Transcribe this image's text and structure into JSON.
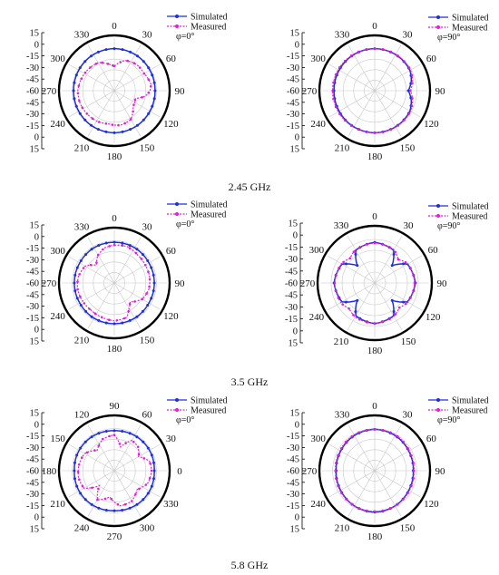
{
  "figure": {
    "sections": [
      {
        "label": "2.45 GHz"
      },
      {
        "label": "3.5 GHz"
      },
      {
        "label": "5.8 GHz"
      }
    ]
  },
  "colors": {
    "simulated": "#1f2fd6",
    "measured": "#e01fd6",
    "axis": "#000000",
    "grid": "#c8c8c8"
  },
  "chart_data": [
    {
      "type": "polar",
      "panel": "2.45 GHz, φ=0°",
      "radial_ticks": [
        "15",
        "0",
        "-15",
        "-30",
        "-45",
        "-60",
        "-45",
        "-30",
        "-15",
        "0",
        "15"
      ],
      "radial_range": [
        -60,
        15
      ],
      "angle_labels": [
        "0",
        "30",
        "60",
        "90",
        "120",
        "150",
        "180",
        "210",
        "240",
        "270",
        "300",
        "330"
      ],
      "legend": [
        "Simulated",
        "Measured"
      ],
      "annotation": "φ=0°",
      "series": [
        {
          "name": "Simulated",
          "angles_deg": [
            0,
            30,
            60,
            90,
            120,
            150,
            180,
            210,
            240,
            270,
            300,
            330
          ],
          "values_db": [
            0,
            -0.5,
            -1.5,
            -2,
            -1.5,
            -0.5,
            0,
            -0.5,
            -1.5,
            -2,
            -1.5,
            -0.5
          ]
        },
        {
          "name": "Measured",
          "angles_deg": [
            0,
            20,
            40,
            60,
            80,
            90,
            100,
            110,
            130,
            150,
            170,
            180,
            190,
            210,
            230,
            250,
            270,
            290,
            310,
            330,
            340,
            350
          ],
          "values_db": [
            -25,
            -14,
            -11,
            -11,
            -7,
            -9,
            -15,
            -28,
            -25,
            -13,
            -10,
            -11,
            -12,
            -10,
            -9,
            -8,
            -8,
            -10,
            -12,
            -14,
            -18,
            -22
          ]
        }
      ]
    },
    {
      "type": "polar",
      "panel": "2.45 GHz, φ=90°",
      "radial_ticks": [
        "15",
        "0",
        "-15",
        "-30",
        "-45",
        "-60",
        "-45",
        "-30",
        "-15",
        "0",
        "15"
      ],
      "radial_range": [
        -60,
        15
      ],
      "angle_labels": [
        "0",
        "30",
        "60",
        "90",
        "120",
        "150",
        "180",
        "210",
        "240",
        "270",
        "300",
        "330"
      ],
      "legend": [
        "Simulated",
        "Measured"
      ],
      "annotation": "φ=90°",
      "series": [
        {
          "name": "Simulated",
          "angles_deg": [
            0,
            30,
            60,
            75,
            90,
            105,
            120,
            150,
            180,
            210,
            240,
            270,
            300,
            330
          ],
          "values_db": [
            0,
            -0.5,
            -2,
            -6,
            -12,
            -6,
            -2,
            -0.5,
            0,
            -0.5,
            -1.5,
            -2,
            -1.5,
            -0.5
          ]
        },
        {
          "name": "Measured",
          "angles_deg": [
            0,
            30,
            60,
            75,
            90,
            105,
            120,
            150,
            180,
            210,
            240,
            270,
            300,
            330
          ],
          "values_db": [
            0,
            0,
            -1,
            -4,
            -9,
            -4,
            -1,
            0,
            0,
            0,
            0,
            0,
            0,
            0
          ]
        }
      ]
    },
    {
      "type": "polar",
      "panel": "3.5 GHz, φ=0°",
      "radial_ticks": [
        "15",
        "0",
        "-15",
        "-30",
        "-45",
        "-60",
        "-45",
        "-30",
        "-15",
        "0",
        "15"
      ],
      "radial_range": [
        -60,
        15
      ],
      "angle_labels": [
        "0",
        "30",
        "60",
        "90",
        "120",
        "150",
        "180",
        "210",
        "240",
        "270",
        "300",
        "330"
      ],
      "legend": [
        "Simulated",
        "Measured"
      ],
      "annotation": "φ=0°",
      "series": [
        {
          "name": "Simulated",
          "angles_deg": [
            0,
            30,
            60,
            90,
            120,
            150,
            180,
            210,
            240,
            270,
            300,
            330
          ],
          "values_db": [
            -2,
            -2,
            -3,
            -3,
            -3,
            -2,
            -2,
            -2,
            -3,
            -3,
            -3,
            -2
          ]
        },
        {
          "name": "Measured",
          "angles_deg": [
            0,
            20,
            40,
            60,
            80,
            100,
            120,
            140,
            150,
            160,
            180,
            200,
            220,
            240,
            260,
            280,
            300,
            315,
            330,
            345
          ],
          "values_db": [
            -6,
            -5,
            -8,
            -9,
            -9,
            -10,
            -14,
            -25,
            -18,
            -8,
            -6,
            -8,
            -9,
            -8,
            -7,
            -8,
            -12,
            -24,
            -14,
            -8
          ]
        }
      ]
    },
    {
      "type": "polar",
      "panel": "3.5 GHz, φ=90°",
      "radial_ticks": [
        "15",
        "0",
        "-15",
        "-30",
        "-45",
        "-60",
        "-45",
        "-30",
        "-15",
        "0",
        "15"
      ],
      "radial_range": [
        -60,
        15
      ],
      "angle_labels": [
        "0",
        "30",
        "60",
        "90",
        "120",
        "150",
        "180",
        "210",
        "240",
        "270",
        "300",
        "330"
      ],
      "legend": [
        "Simulated",
        "Measured"
      ],
      "annotation": "φ=90°",
      "series": [
        {
          "name": "Simulated",
          "angles_deg": [
            0,
            30,
            45,
            60,
            90,
            120,
            135,
            150,
            180,
            210,
            225,
            240,
            270,
            300,
            315,
            330
          ],
          "values_db": [
            -4,
            -8,
            -26,
            -8,
            -4,
            -8,
            -26,
            -8,
            -4,
            -8,
            -26,
            -8,
            -4,
            -8,
            -26,
            -8
          ]
        },
        {
          "name": "Measured",
          "angles_deg": [
            0,
            30,
            45,
            60,
            90,
            120,
            135,
            150,
            180,
            210,
            225,
            240,
            270,
            300,
            315,
            330
          ],
          "values_db": [
            -5,
            -7,
            -14,
            -7,
            -5,
            -7,
            -12,
            -7,
            -4,
            -6,
            -10,
            -6,
            -5,
            -7,
            -12,
            -7
          ]
        }
      ]
    },
    {
      "type": "polar",
      "panel": "5.8 GHz, φ=0°",
      "radial_ticks": [
        "15",
        "0",
        "-15",
        "-30",
        "-45",
        "-60",
        "-45",
        "-30",
        "-15",
        "0",
        "15"
      ],
      "radial_range": [
        -60,
        15
      ],
      "angle_labels": [
        "90",
        "60",
        "30",
        "0",
        "330",
        "300",
        "270",
        "240",
        "210",
        "180",
        "150",
        "120"
      ],
      "legend": [
        "Simulated",
        "Measured"
      ],
      "annotation": "φ=0°",
      "series": [
        {
          "name": "Simulated",
          "angles_deg": [
            0,
            30,
            60,
            90,
            120,
            150,
            180,
            210,
            240,
            270,
            300,
            330
          ],
          "values_db": [
            -3,
            -2,
            -2,
            -3,
            -2,
            -2,
            -3,
            -2,
            -2,
            -3,
            -2,
            -2
          ]
        },
        {
          "name": "Measured",
          "angles_deg": [
            0,
            15,
            30,
            45,
            60,
            75,
            90,
            110,
            130,
            150,
            170,
            190,
            210,
            225,
            240,
            260,
            280,
            300,
            320,
            340
          ],
          "values_db": [
            -9,
            -25,
            -10,
            -12,
            -20,
            -8,
            -7,
            -9,
            -18,
            -10,
            -9,
            -22,
            -12,
            -30,
            -10,
            -8,
            -9,
            -11,
            -22,
            -12
          ]
        }
      ]
    },
    {
      "type": "polar",
      "panel": "5.8 GHz, φ=90°",
      "radial_ticks": [
        "15",
        "0",
        "-15",
        "-30",
        "-45",
        "-60",
        "-45",
        "-30",
        "-15",
        "0",
        "15"
      ],
      "radial_range": [
        -60,
        15
      ],
      "angle_labels": [
        "0",
        "30",
        "60",
        "90",
        "120",
        "150",
        "180",
        "210",
        "240",
        "270",
        "300",
        "330"
      ],
      "legend": [
        "Simulated",
        "Measured"
      ],
      "annotation": "φ=90°",
      "series": [
        {
          "name": "Simulated",
          "angles_deg": [
            0,
            30,
            60,
            90,
            120,
            150,
            180,
            210,
            240,
            270,
            300,
            330
          ],
          "values_db": [
            -1,
            -2,
            -4,
            -5,
            -4,
            -2,
            -1,
            -2,
            -4,
            -5,
            -4,
            -2
          ]
        },
        {
          "name": "Measured",
          "angles_deg": [
            0,
            30,
            60,
            90,
            120,
            150,
            180,
            210,
            240,
            270,
            300,
            330
          ],
          "values_db": [
            -1,
            -1,
            -3,
            -4,
            -3,
            -2,
            -2,
            -2,
            -3,
            -4,
            -3,
            -1
          ]
        }
      ]
    }
  ]
}
